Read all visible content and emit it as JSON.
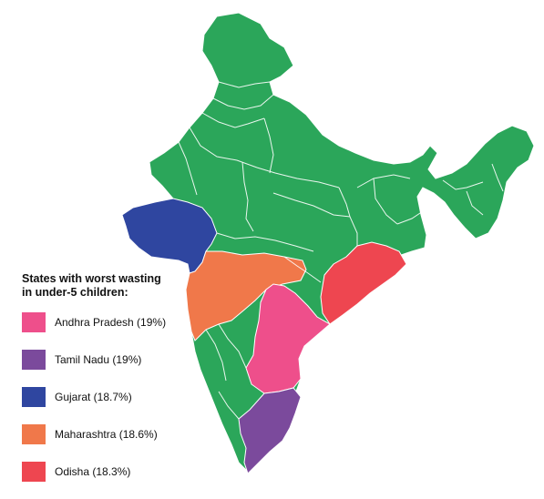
{
  "legend": {
    "title": "States with worst wasting\nin under-5 children:",
    "items": [
      {
        "state": "Andhra Pradesh",
        "label": "Andhra Pradesh (19%)",
        "value_percent": 19,
        "color": "#ee4f8b"
      },
      {
        "state": "Tamil Nadu",
        "label": "Tamil Nadu (19%)",
        "value_percent": 19,
        "color": "#7b4a9c"
      },
      {
        "state": "Gujarat",
        "label": "Gujarat (18.7%)",
        "value_percent": 18.7,
        "color": "#2f46a0"
      },
      {
        "state": "Maharashtra",
        "label": "Maharashtra (18.6%)",
        "value_percent": 18.6,
        "color": "#f0784a"
      },
      {
        "state": "Odisha",
        "label": "Odisha (18.3%)",
        "value_percent": 18.3,
        "color": "#ee4650"
      }
    ]
  },
  "map": {
    "base_color": "#2ba65a",
    "border_color": "#ffffff"
  }
}
